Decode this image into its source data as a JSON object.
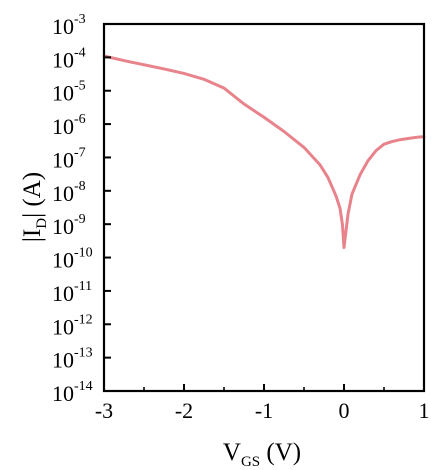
{
  "chart_data": {
    "type": "line",
    "title": "",
    "xlabel": {
      "main": "V",
      "sub": "GS",
      "unit": " (V)"
    },
    "ylabel": {
      "pre": "|I",
      "sub": "D",
      "post": "| (A)"
    },
    "x_scale": "linear",
    "y_scale": "log",
    "xlim": [
      -3,
      1
    ],
    "ylim": [
      1e-14,
      0.001
    ],
    "grid": false,
    "legend": "none",
    "x_ticks": [
      {
        "value": -3,
        "label": "-3"
      },
      {
        "value": -2,
        "label": "-2"
      },
      {
        "value": -1,
        "label": "-1"
      },
      {
        "value": 0,
        "label": "0"
      },
      {
        "value": 1,
        "label": "1"
      }
    ],
    "y_ticks": [
      {
        "exp": -3,
        "base": "10",
        "label": "-3"
      },
      {
        "exp": -4,
        "base": "10",
        "label": "-4"
      },
      {
        "exp": -5,
        "base": "10",
        "label": "-5"
      },
      {
        "exp": -6,
        "base": "10",
        "label": "-6"
      },
      {
        "exp": -7,
        "base": "10",
        "label": "-7"
      },
      {
        "exp": -8,
        "base": "10",
        "label": "-8"
      },
      {
        "exp": -9,
        "base": "10",
        "label": "-9"
      },
      {
        "exp": -10,
        "base": "10",
        "label": "-10"
      },
      {
        "exp": -11,
        "base": "10",
        "label": "-11"
      },
      {
        "exp": -12,
        "base": "10",
        "label": "-12"
      },
      {
        "exp": -13,
        "base": "10",
        "label": "-13"
      },
      {
        "exp": -14,
        "base": "10",
        "label": "-14"
      }
    ],
    "series": [
      {
        "color": "#e8838c",
        "x": [
          -3.0,
          -2.75,
          -2.5,
          -2.25,
          -2.0,
          -1.75,
          -1.5,
          -1.25,
          -1.0,
          -0.75,
          -0.5,
          -0.3,
          -0.2,
          -0.1,
          -0.05,
          -0.02,
          0.0,
          0.02,
          0.05,
          0.1,
          0.2,
          0.3,
          0.4,
          0.5,
          0.6,
          0.7,
          0.8,
          0.9,
          1.0
        ],
        "y": [
          0.00011,
          8e-05,
          6e-05,
          4.5e-05,
          3.3e-05,
          2.2e-05,
          1.2e-05,
          4e-06,
          1.6e-06,
          6e-07,
          2e-07,
          6e-08,
          2.5e-08,
          7e-09,
          3e-09,
          1e-09,
          2e-10,
          5e-10,
          2e-09,
          8e-09,
          3e-08,
          8e-08,
          1.6e-07,
          2.5e-07,
          3e-07,
          3.4e-07,
          3.7e-07,
          4e-07,
          4.2e-07
        ]
      }
    ]
  }
}
